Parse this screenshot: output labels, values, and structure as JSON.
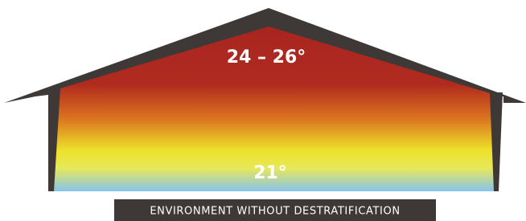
{
  "diagram": {
    "top_temperature": "24 – 26°",
    "bottom_temperature": "21°"
  },
  "caption": "ENVIRONMENT WITHOUT DESTRATIFICATION"
}
